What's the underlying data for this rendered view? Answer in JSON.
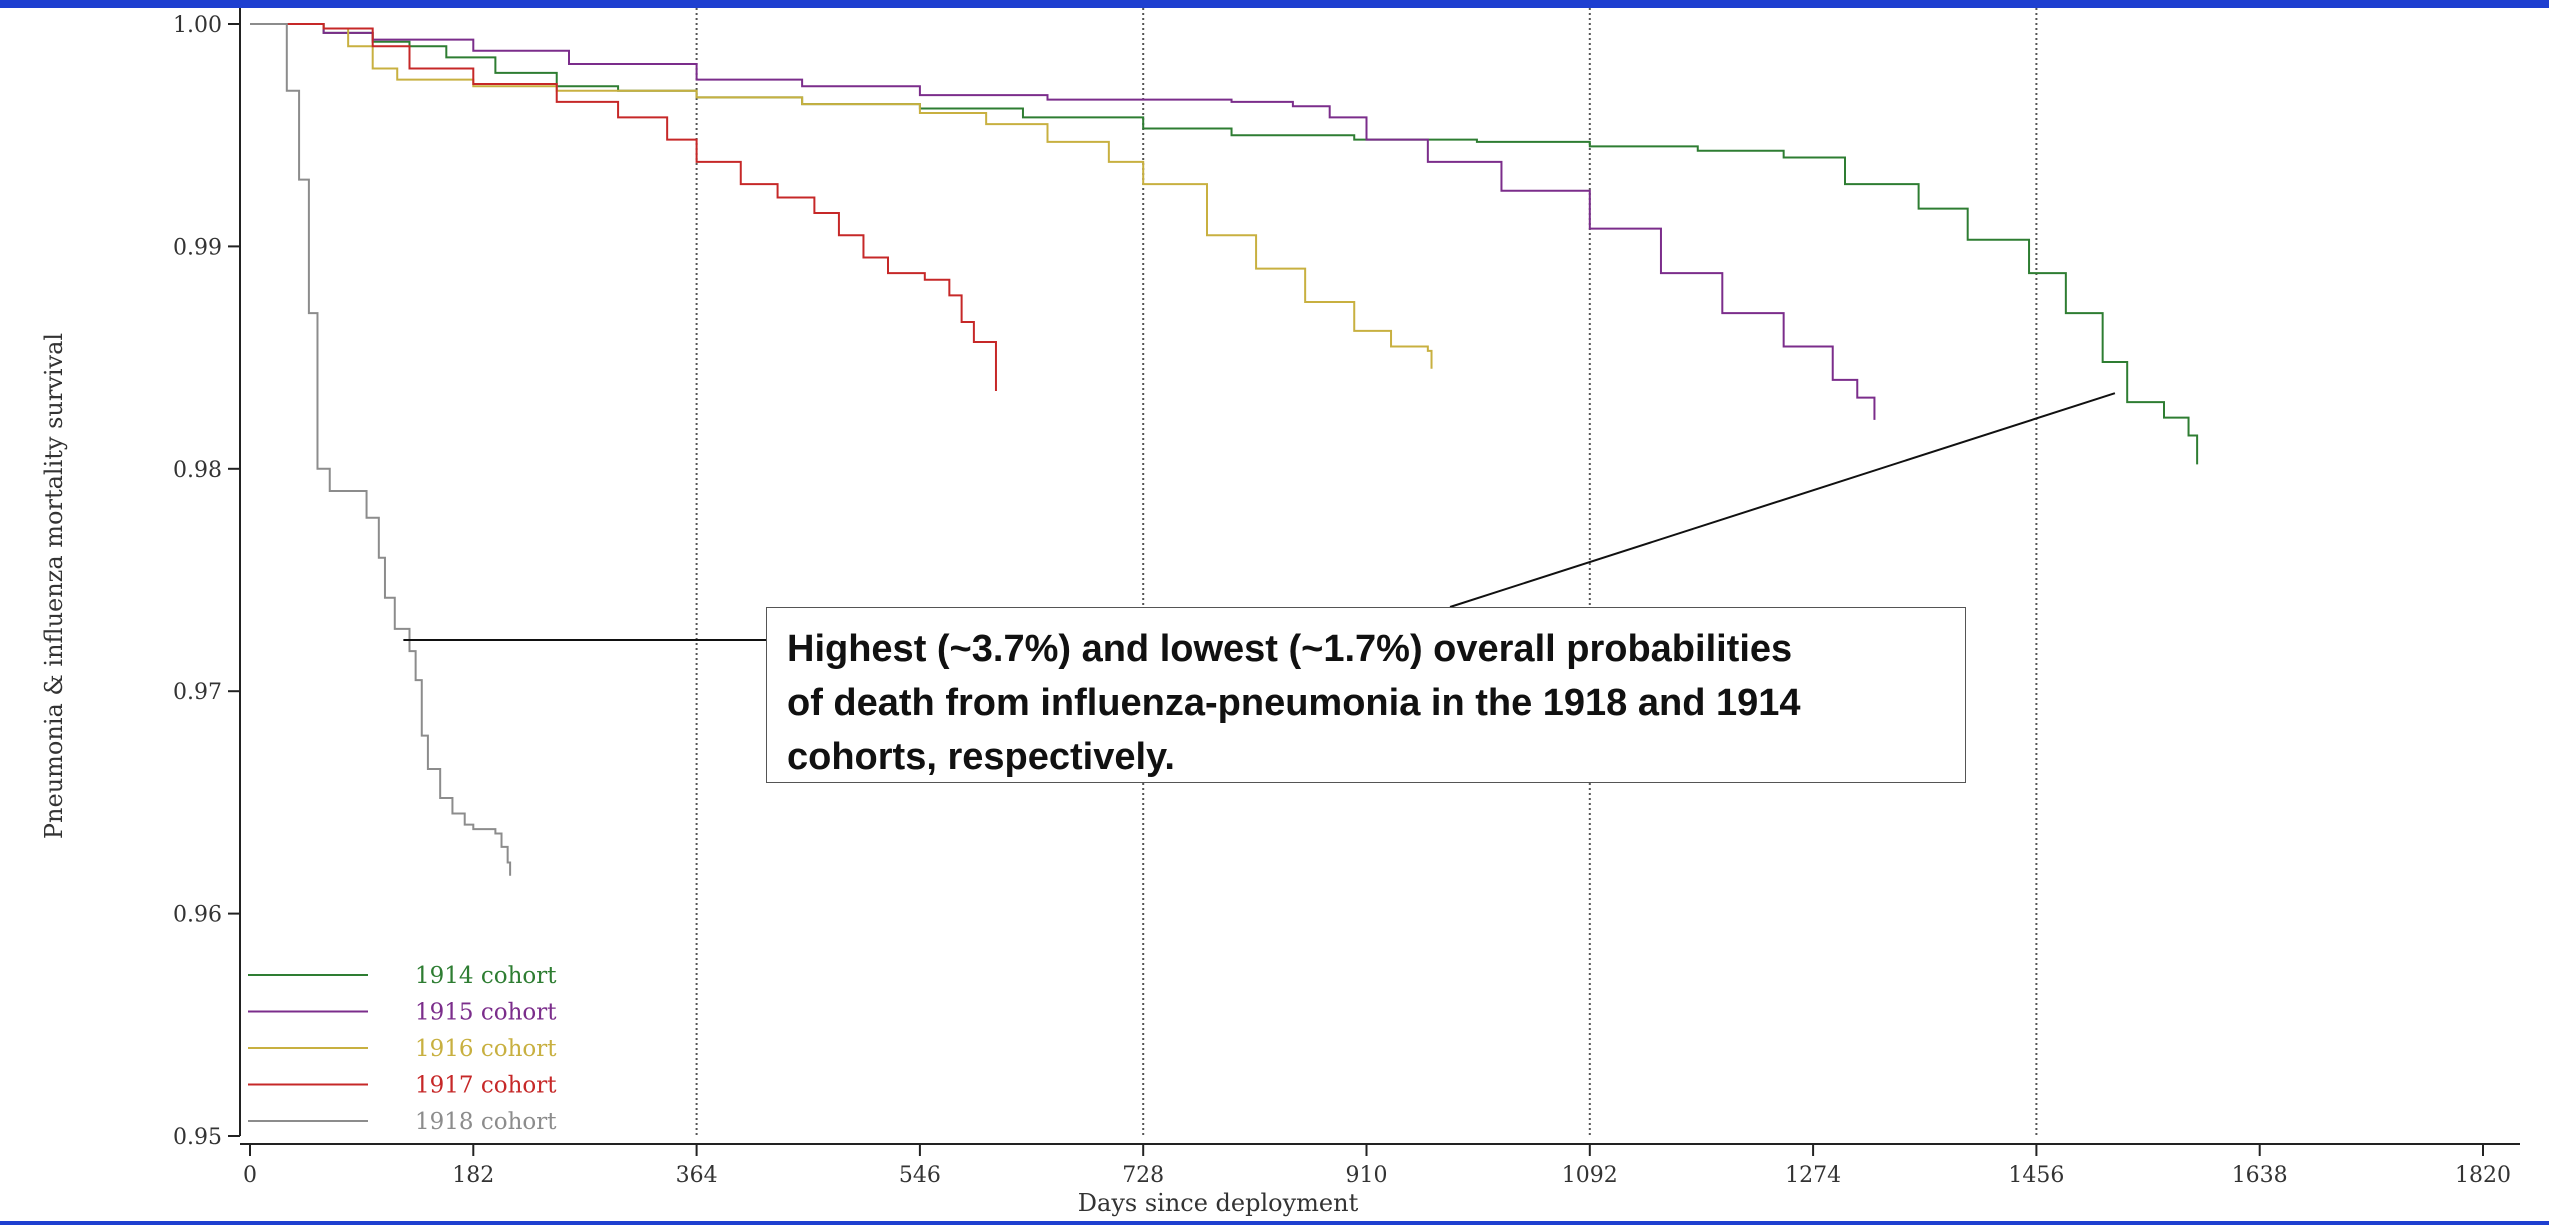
{
  "chart_data": {
    "type": "line",
    "step": true,
    "xlabel": "Days since deployment",
    "ylabel": "Pneumonia & influenza mortality survival",
    "xlim": [
      0,
      1820
    ],
    "ylim": [
      0.95,
      1.0
    ],
    "xticks": [
      0,
      182,
      364,
      546,
      728,
      910,
      1092,
      1274,
      1456,
      1638,
      1820
    ],
    "xtick_labels": [
      "0",
      "182",
      "364",
      "546",
      "728",
      "910",
      "1092",
      "1274",
      "1456",
      "1638",
      "1820"
    ],
    "yticks": [
      0.95,
      0.96,
      0.97,
      0.98,
      0.99,
      1.0
    ],
    "ytick_labels": [
      "0.95",
      "0.96",
      "0.97",
      "0.98",
      "0.99",
      "1.00"
    ],
    "vlines": [
      364,
      728,
      1092,
      1456
    ],
    "legend_position": "bottom-left",
    "series": [
      {
        "name": "1914 cohort",
        "color": "#2e7d32",
        "points": [
          [
            0,
            1.0
          ],
          [
            60,
            0.9996
          ],
          [
            100,
            0.9992
          ],
          [
            130,
            0.999
          ],
          [
            160,
            0.9985
          ],
          [
            200,
            0.9978
          ],
          [
            250,
            0.9972
          ],
          [
            300,
            0.997
          ],
          [
            364,
            0.9967
          ],
          [
            450,
            0.9964
          ],
          [
            546,
            0.9962
          ],
          [
            630,
            0.9958
          ],
          [
            728,
            0.9953
          ],
          [
            800,
            0.995
          ],
          [
            900,
            0.9948
          ],
          [
            1000,
            0.9947
          ],
          [
            1092,
            0.9945
          ],
          [
            1180,
            0.9943
          ],
          [
            1220,
            0.9943
          ],
          [
            1250,
            0.994
          ],
          [
            1300,
            0.9928
          ],
          [
            1360,
            0.9917
          ],
          [
            1400,
            0.9903
          ],
          [
            1450,
            0.9888
          ],
          [
            1480,
            0.987
          ],
          [
            1510,
            0.9848
          ],
          [
            1530,
            0.983
          ],
          [
            1560,
            0.9823
          ],
          [
            1580,
            0.9815
          ],
          [
            1587,
            0.9802
          ]
        ]
      },
      {
        "name": "1915 cohort",
        "color": "#7b2d8b",
        "points": [
          [
            0,
            1.0
          ],
          [
            60,
            0.9996
          ],
          [
            100,
            0.9993
          ],
          [
            182,
            0.9988
          ],
          [
            260,
            0.9982
          ],
          [
            364,
            0.9975
          ],
          [
            450,
            0.9972
          ],
          [
            546,
            0.9968
          ],
          [
            650,
            0.9966
          ],
          [
            728,
            0.9966
          ],
          [
            800,
            0.9965
          ],
          [
            850,
            0.9963
          ],
          [
            880,
            0.9958
          ],
          [
            910,
            0.9948
          ],
          [
            960,
            0.9938
          ],
          [
            1020,
            0.9925
          ],
          [
            1092,
            0.9908
          ],
          [
            1150,
            0.9888
          ],
          [
            1200,
            0.987
          ],
          [
            1250,
            0.9855
          ],
          [
            1290,
            0.984
          ],
          [
            1310,
            0.9832
          ],
          [
            1324,
            0.9822
          ]
        ]
      },
      {
        "name": "1916 cohort",
        "color": "#c8b040",
        "points": [
          [
            0,
            1.0
          ],
          [
            60,
            0.9998
          ],
          [
            80,
            0.999
          ],
          [
            100,
            0.998
          ],
          [
            120,
            0.9975
          ],
          [
            182,
            0.9972
          ],
          [
            250,
            0.997
          ],
          [
            364,
            0.9967
          ],
          [
            450,
            0.9964
          ],
          [
            546,
            0.996
          ],
          [
            600,
            0.9955
          ],
          [
            650,
            0.9947
          ],
          [
            700,
            0.9938
          ],
          [
            728,
            0.9928
          ],
          [
            780,
            0.9905
          ],
          [
            820,
            0.989
          ],
          [
            860,
            0.9875
          ],
          [
            900,
            0.9862
          ],
          [
            930,
            0.9855
          ],
          [
            960,
            0.9853
          ],
          [
            963,
            0.9845
          ]
        ]
      },
      {
        "name": "1917 cohort",
        "color": "#c62828",
        "points": [
          [
            0,
            1.0
          ],
          [
            60,
            0.9998
          ],
          [
            100,
            0.999
          ],
          [
            130,
            0.998
          ],
          [
            182,
            0.9973
          ],
          [
            250,
            0.9965
          ],
          [
            300,
            0.9958
          ],
          [
            340,
            0.9948
          ],
          [
            364,
            0.9938
          ],
          [
            400,
            0.9928
          ],
          [
            430,
            0.9922
          ],
          [
            460,
            0.9915
          ],
          [
            480,
            0.9905
          ],
          [
            500,
            0.9895
          ],
          [
            520,
            0.9888
          ],
          [
            550,
            0.9885
          ],
          [
            570,
            0.9878
          ],
          [
            580,
            0.9866
          ],
          [
            590,
            0.9857
          ],
          [
            600,
            0.9857
          ],
          [
            608,
            0.9848
          ],
          [
            608,
            0.9835
          ]
        ]
      },
      {
        "name": "1918 cohort",
        "color": "#8c8c8c",
        "points": [
          [
            0,
            1.0
          ],
          [
            20,
            1.0
          ],
          [
            30,
            0.997
          ],
          [
            40,
            0.993
          ],
          [
            48,
            0.987
          ],
          [
            55,
            0.98
          ],
          [
            65,
            0.979
          ],
          [
            85,
            0.979
          ],
          [
            95,
            0.9778
          ],
          [
            105,
            0.976
          ],
          [
            110,
            0.9742
          ],
          [
            118,
            0.9728
          ],
          [
            130,
            0.9718
          ],
          [
            135,
            0.9705
          ],
          [
            140,
            0.968
          ],
          [
            145,
            0.9665
          ],
          [
            155,
            0.9652
          ],
          [
            165,
            0.9645
          ],
          [
            175,
            0.964
          ],
          [
            182,
            0.9638
          ],
          [
            200,
            0.9636
          ],
          [
            205,
            0.963
          ],
          [
            210,
            0.9623
          ],
          [
            212,
            0.9617
          ]
        ]
      }
    ],
    "annotation": {
      "text_lines": [
        "Highest (~3.7%) and lowest (~1.7%) overall probabilities",
        "of death from influenza-pneumonia in the 1918 and 1914",
        "cohorts, respectively."
      ],
      "pointers": [
        {
          "series": "1918 cohort",
          "x": 125,
          "y": 0.9723
        },
        {
          "series": "1914 cohort",
          "x": 1520,
          "y": 0.9834
        }
      ]
    }
  }
}
